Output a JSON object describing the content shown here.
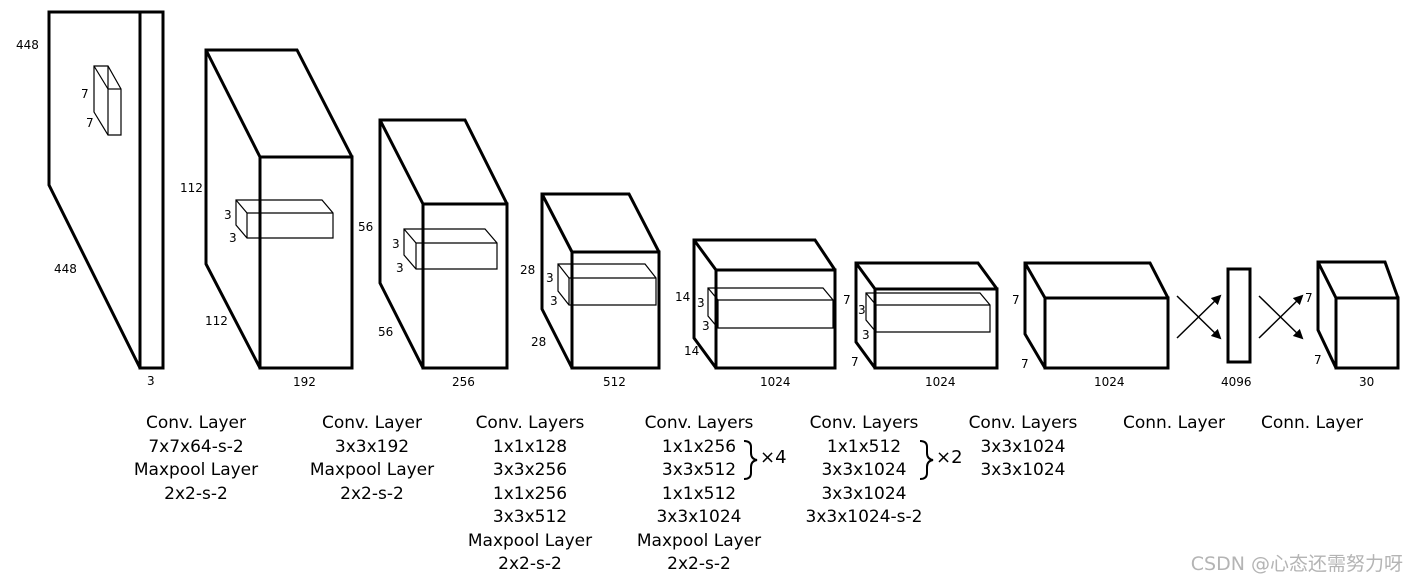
{
  "stages": [
    {
      "dims": {
        "height": "448",
        "width": "448",
        "depth": "3",
        "kernel_h": "7",
        "kernel_w": "7"
      },
      "caption": [
        "Conv. Layer",
        "7x7x64-s-2",
        "Maxpool Layer",
        "2x2-s-2"
      ]
    },
    {
      "dims": {
        "height": "112",
        "width": "112",
        "depth": "192",
        "kernel_h": "3",
        "kernel_w": "3"
      },
      "caption": [
        "Conv. Layer",
        "3x3x192",
        "Maxpool Layer",
        "2x2-s-2"
      ]
    },
    {
      "dims": {
        "height": "56",
        "width": "56",
        "depth": "256",
        "kernel_h": "3",
        "kernel_w": "3"
      },
      "caption": [
        "Conv. Layers",
        "1x1x128",
        "3x3x256",
        "1x1x256",
        "3x3x512",
        "Maxpool Layer",
        "2x2-s-2"
      ]
    },
    {
      "dims": {
        "height": "28",
        "width": "28",
        "depth": "512",
        "kernel_h": "3",
        "kernel_w": "3"
      },
      "caption": [
        "Conv. Layers",
        "1x1x256",
        "3x3x512",
        "1x1x512",
        "3x3x1024",
        "Maxpool Layer",
        "2x2-s-2"
      ],
      "repeat": "×4"
    },
    {
      "dims": {
        "height": "14",
        "width": "14",
        "depth": "1024",
        "kernel_h": "3",
        "kernel_w": "3"
      },
      "caption": [
        "Conv. Layers",
        "1x1x512",
        "3x3x1024",
        "3x3x1024",
        "3x3x1024-s-2"
      ],
      "repeat": "×2"
    },
    {
      "dims": {
        "height": "7",
        "width": "7",
        "depth": "1024",
        "kernel_h": "3",
        "kernel_w": "3"
      },
      "caption": [
        "Conv. Layers",
        "3x3x1024",
        "3x3x1024"
      ]
    },
    {
      "dims": {
        "height": "7",
        "width": "7",
        "depth": "1024"
      },
      "caption": [
        "Conn. Layer"
      ]
    },
    {
      "dims": {
        "depth": "4096"
      },
      "caption": [
        "Conn. Layer"
      ]
    },
    {
      "dims": {
        "height": "7",
        "width": "7",
        "depth": "30"
      }
    }
  ],
  "watermark": "CSDN @心态还需努力呀"
}
